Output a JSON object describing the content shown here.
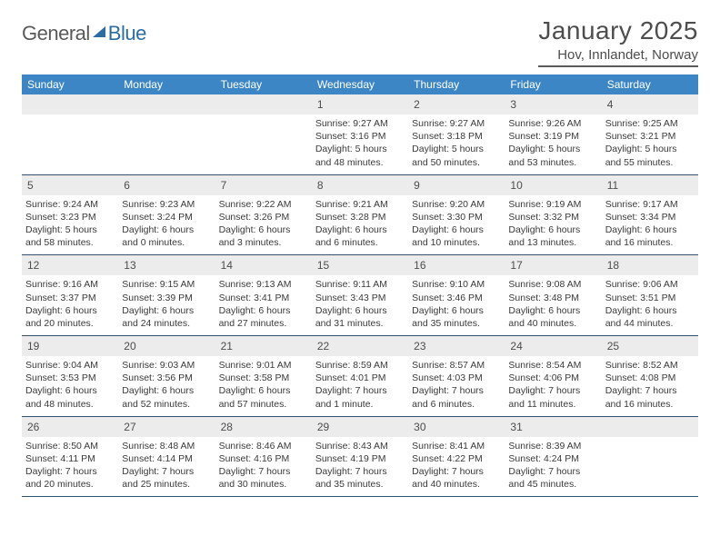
{
  "logo": {
    "word1": "General",
    "word2": "Blue"
  },
  "title": "January 2025",
  "location": "Hov, Innlandet, Norway",
  "colors": {
    "header_bg": "#3d86c6",
    "header_text": "#ffffff",
    "daynum_bg": "#ececec",
    "week_border": "#35506b",
    "title_color": "#4d4d4d",
    "logo_gray": "#5a5a5a",
    "logo_blue": "#2b6ca3"
  },
  "days_of_week": [
    "Sunday",
    "Monday",
    "Tuesday",
    "Wednesday",
    "Thursday",
    "Friday",
    "Saturday"
  ],
  "weeks": [
    [
      {
        "n": "",
        "sunrise": "",
        "sunset": "",
        "daylight": ""
      },
      {
        "n": "",
        "sunrise": "",
        "sunset": "",
        "daylight": ""
      },
      {
        "n": "",
        "sunrise": "",
        "sunset": "",
        "daylight": ""
      },
      {
        "n": "1",
        "sunrise": "Sunrise: 9:27 AM",
        "sunset": "Sunset: 3:16 PM",
        "daylight": "Daylight: 5 hours and 48 minutes."
      },
      {
        "n": "2",
        "sunrise": "Sunrise: 9:27 AM",
        "sunset": "Sunset: 3:18 PM",
        "daylight": "Daylight: 5 hours and 50 minutes."
      },
      {
        "n": "3",
        "sunrise": "Sunrise: 9:26 AM",
        "sunset": "Sunset: 3:19 PM",
        "daylight": "Daylight: 5 hours and 53 minutes."
      },
      {
        "n": "4",
        "sunrise": "Sunrise: 9:25 AM",
        "sunset": "Sunset: 3:21 PM",
        "daylight": "Daylight: 5 hours and 55 minutes."
      }
    ],
    [
      {
        "n": "5",
        "sunrise": "Sunrise: 9:24 AM",
        "sunset": "Sunset: 3:23 PM",
        "daylight": "Daylight: 5 hours and 58 minutes."
      },
      {
        "n": "6",
        "sunrise": "Sunrise: 9:23 AM",
        "sunset": "Sunset: 3:24 PM",
        "daylight": "Daylight: 6 hours and 0 minutes."
      },
      {
        "n": "7",
        "sunrise": "Sunrise: 9:22 AM",
        "sunset": "Sunset: 3:26 PM",
        "daylight": "Daylight: 6 hours and 3 minutes."
      },
      {
        "n": "8",
        "sunrise": "Sunrise: 9:21 AM",
        "sunset": "Sunset: 3:28 PM",
        "daylight": "Daylight: 6 hours and 6 minutes."
      },
      {
        "n": "9",
        "sunrise": "Sunrise: 9:20 AM",
        "sunset": "Sunset: 3:30 PM",
        "daylight": "Daylight: 6 hours and 10 minutes."
      },
      {
        "n": "10",
        "sunrise": "Sunrise: 9:19 AM",
        "sunset": "Sunset: 3:32 PM",
        "daylight": "Daylight: 6 hours and 13 minutes."
      },
      {
        "n": "11",
        "sunrise": "Sunrise: 9:17 AM",
        "sunset": "Sunset: 3:34 PM",
        "daylight": "Daylight: 6 hours and 16 minutes."
      }
    ],
    [
      {
        "n": "12",
        "sunrise": "Sunrise: 9:16 AM",
        "sunset": "Sunset: 3:37 PM",
        "daylight": "Daylight: 6 hours and 20 minutes."
      },
      {
        "n": "13",
        "sunrise": "Sunrise: 9:15 AM",
        "sunset": "Sunset: 3:39 PM",
        "daylight": "Daylight: 6 hours and 24 minutes."
      },
      {
        "n": "14",
        "sunrise": "Sunrise: 9:13 AM",
        "sunset": "Sunset: 3:41 PM",
        "daylight": "Daylight: 6 hours and 27 minutes."
      },
      {
        "n": "15",
        "sunrise": "Sunrise: 9:11 AM",
        "sunset": "Sunset: 3:43 PM",
        "daylight": "Daylight: 6 hours and 31 minutes."
      },
      {
        "n": "16",
        "sunrise": "Sunrise: 9:10 AM",
        "sunset": "Sunset: 3:46 PM",
        "daylight": "Daylight: 6 hours and 35 minutes."
      },
      {
        "n": "17",
        "sunrise": "Sunrise: 9:08 AM",
        "sunset": "Sunset: 3:48 PM",
        "daylight": "Daylight: 6 hours and 40 minutes."
      },
      {
        "n": "18",
        "sunrise": "Sunrise: 9:06 AM",
        "sunset": "Sunset: 3:51 PM",
        "daylight": "Daylight: 6 hours and 44 minutes."
      }
    ],
    [
      {
        "n": "19",
        "sunrise": "Sunrise: 9:04 AM",
        "sunset": "Sunset: 3:53 PM",
        "daylight": "Daylight: 6 hours and 48 minutes."
      },
      {
        "n": "20",
        "sunrise": "Sunrise: 9:03 AM",
        "sunset": "Sunset: 3:56 PM",
        "daylight": "Daylight: 6 hours and 52 minutes."
      },
      {
        "n": "21",
        "sunrise": "Sunrise: 9:01 AM",
        "sunset": "Sunset: 3:58 PM",
        "daylight": "Daylight: 6 hours and 57 minutes."
      },
      {
        "n": "22",
        "sunrise": "Sunrise: 8:59 AM",
        "sunset": "Sunset: 4:01 PM",
        "daylight": "Daylight: 7 hours and 1 minute."
      },
      {
        "n": "23",
        "sunrise": "Sunrise: 8:57 AM",
        "sunset": "Sunset: 4:03 PM",
        "daylight": "Daylight: 7 hours and 6 minutes."
      },
      {
        "n": "24",
        "sunrise": "Sunrise: 8:54 AM",
        "sunset": "Sunset: 4:06 PM",
        "daylight": "Daylight: 7 hours and 11 minutes."
      },
      {
        "n": "25",
        "sunrise": "Sunrise: 8:52 AM",
        "sunset": "Sunset: 4:08 PM",
        "daylight": "Daylight: 7 hours and 16 minutes."
      }
    ],
    [
      {
        "n": "26",
        "sunrise": "Sunrise: 8:50 AM",
        "sunset": "Sunset: 4:11 PM",
        "daylight": "Daylight: 7 hours and 20 minutes."
      },
      {
        "n": "27",
        "sunrise": "Sunrise: 8:48 AM",
        "sunset": "Sunset: 4:14 PM",
        "daylight": "Daylight: 7 hours and 25 minutes."
      },
      {
        "n": "28",
        "sunrise": "Sunrise: 8:46 AM",
        "sunset": "Sunset: 4:16 PM",
        "daylight": "Daylight: 7 hours and 30 minutes."
      },
      {
        "n": "29",
        "sunrise": "Sunrise: 8:43 AM",
        "sunset": "Sunset: 4:19 PM",
        "daylight": "Daylight: 7 hours and 35 minutes."
      },
      {
        "n": "30",
        "sunrise": "Sunrise: 8:41 AM",
        "sunset": "Sunset: 4:22 PM",
        "daylight": "Daylight: 7 hours and 40 minutes."
      },
      {
        "n": "31",
        "sunrise": "Sunrise: 8:39 AM",
        "sunset": "Sunset: 4:24 PM",
        "daylight": "Daylight: 7 hours and 45 minutes."
      },
      {
        "n": "",
        "sunrise": "",
        "sunset": "",
        "daylight": ""
      }
    ]
  ]
}
